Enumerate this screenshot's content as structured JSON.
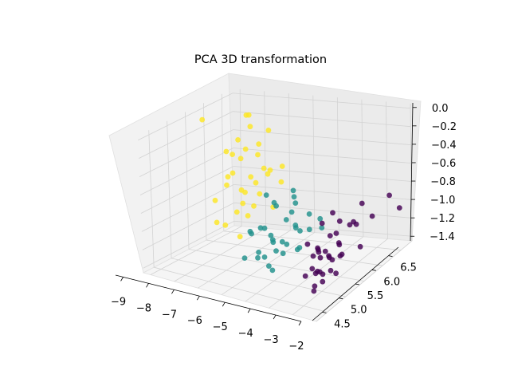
{
  "chart_data": {
    "type": "scatter",
    "projection": "3d",
    "title": "PCA 3D transformation",
    "xlabel": "",
    "ylabel": "",
    "zlabel": "",
    "xlim": [
      -9.3,
      -2.0
    ],
    "ylim": [
      4.2,
      6.8
    ],
    "zlim": [
      -1.45,
      0.05
    ],
    "x_ticks": [
      -9,
      -8,
      -7,
      -6,
      -5,
      -4,
      -3,
      -2
    ],
    "x_tick_labels": [
      "−9",
      "−8",
      "−7",
      "−6",
      "−5",
      "−4",
      "−3",
      "−2"
    ],
    "y_ticks": [
      4.5,
      5.0,
      5.5,
      6.0,
      6.5
    ],
    "y_tick_labels": [
      "4.5",
      "5.0",
      "5.5",
      "6.0",
      "6.5"
    ],
    "z_ticks": [
      -1.4,
      -1.2,
      -1.0,
      -0.8,
      -0.6,
      -0.4,
      -0.2,
      0.0
    ],
    "z_tick_labels": [
      "−1.4",
      "−1.2",
      "−1.0",
      "−0.8",
      "−0.6",
      "−0.4",
      "−0.2",
      "0.0"
    ],
    "grid": true,
    "legend": false,
    "colors": {
      "class_0": "#440154",
      "class_1": "#21918c",
      "class_2": "#fde725"
    },
    "series": [
      {
        "color": "#440154",
        "points": [
          [
            -2.6,
            6.6,
            -0.9
          ],
          [
            -2.5,
            6.8,
            -1.1
          ],
          [
            -2.7,
            6.2,
            -1.0
          ],
          [
            -2.8,
            6.0,
            -0.8
          ],
          [
            -2.6,
            5.8,
            -1.2
          ],
          [
            -2.9,
            5.9,
            -1.0
          ],
          [
            -2.7,
            5.7,
            -0.9
          ],
          [
            -3.0,
            5.5,
            -1.1
          ],
          [
            -2.8,
            5.4,
            -0.8
          ],
          [
            -2.7,
            5.3,
            -1.0
          ],
          [
            -2.9,
            5.2,
            -0.9
          ],
          [
            -3.1,
            5.0,
            -1.0
          ],
          [
            -2.6,
            5.0,
            -1.2
          ],
          [
            -2.8,
            5.1,
            -1.1
          ],
          [
            -2.9,
            5.0,
            -0.7
          ],
          [
            -3.0,
            4.9,
            -1.2
          ],
          [
            -2.7,
            4.8,
            -1.0
          ],
          [
            -2.8,
            4.8,
            -0.9
          ],
          [
            -2.6,
            4.6,
            -1.1
          ],
          [
            -3.2,
            4.7,
            -1.2
          ],
          [
            -2.5,
            4.5,
            -1.2
          ],
          [
            -2.9,
            4.6,
            -0.8
          ],
          [
            -2.7,
            5.2,
            -1.3
          ],
          [
            -3.0,
            5.3,
            -1.2
          ],
          [
            -2.8,
            4.9,
            -1.3
          ],
          [
            -2.6,
            5.1,
            -0.6
          ],
          [
            -2.7,
            5.6,
            -0.9
          ],
          [
            -3.1,
            5.1,
            -1.3
          ],
          [
            -2.5,
            4.9,
            -1.0
          ],
          [
            -2.9,
            4.7,
            -1.1
          ],
          [
            -2.8,
            5.0,
            -1.0
          ],
          [
            -2.9,
            5.5,
            -1.2
          ],
          [
            -2.6,
            4.7,
            -0.9
          ],
          [
            -2.7,
            4.6,
            -1.3
          ],
          [
            -3.0,
            4.8,
            -1.0
          ],
          [
            -2.8,
            5.3,
            -0.9
          ],
          [
            -2.5,
            5.2,
            -1.1
          ],
          [
            -2.9,
            4.9,
            -1.2
          ]
        ]
      },
      {
        "color": "#21918c",
        "points": [
          [
            -6.0,
            5.5,
            -0.7
          ],
          [
            -6.3,
            5.9,
            -0.9
          ],
          [
            -5.8,
            6.1,
            -0.8
          ],
          [
            -5.5,
            5.7,
            -1.0
          ],
          [
            -5.0,
            5.6,
            -0.7
          ],
          [
            -5.3,
            5.2,
            -1.1
          ],
          [
            -5.8,
            5.3,
            -1.0
          ],
          [
            -5.5,
            5.0,
            -0.9
          ],
          [
            -5.0,
            5.0,
            -1.0
          ],
          [
            -4.9,
            5.2,
            -1.2
          ],
          [
            -4.8,
            5.5,
            -1.0
          ],
          [
            -4.6,
            5.4,
            -1.2
          ],
          [
            -4.9,
            4.9,
            -1.3
          ],
          [
            -5.2,
            5.0,
            -1.3
          ],
          [
            -5.5,
            4.9,
            -1.2
          ],
          [
            -5.3,
            4.8,
            -1.1
          ],
          [
            -4.5,
            5.3,
            -0.9
          ],
          [
            -4.7,
            5.8,
            -1.1
          ],
          [
            -5.0,
            6.0,
            -1.0
          ],
          [
            -4.8,
            6.2,
            -1.2
          ],
          [
            -5.1,
            5.7,
            -0.8
          ],
          [
            -5.6,
            5.5,
            -0.8
          ],
          [
            -4.6,
            5.0,
            -1.0
          ],
          [
            -4.9,
            4.7,
            -1.1
          ],
          [
            -5.7,
            5.4,
            -1.1
          ],
          [
            -5.1,
            4.5,
            -0.8
          ],
          [
            -6.1,
            5.1,
            -1.0
          ],
          [
            -5.9,
            4.8,
            -1.2
          ],
          [
            -4.4,
            5.9,
            -1.0
          ],
          [
            -5.2,
            5.5,
            -1.2
          ],
          [
            -4.2,
            5.2,
            -1.1
          ],
          [
            -4.8,
            5.4,
            -0.8
          ],
          [
            -4.4,
            4.7,
            -1.0
          ],
          [
            -5.4,
            6.0,
            -1.2
          ]
        ]
      },
      {
        "color": "#fde725",
        "points": [
          [
            -8.6,
            5.5,
            0.0
          ],
          [
            -8.0,
            6.3,
            -0.1
          ],
          [
            -8.5,
            6.7,
            -0.2
          ],
          [
            -8.3,
            6.6,
            -0.3
          ],
          [
            -8.7,
            6.2,
            -0.5
          ],
          [
            -8.2,
            6.4,
            -0.5
          ],
          [
            -8.9,
            6.5,
            -0.6
          ],
          [
            -8.0,
            6.6,
            -0.6
          ],
          [
            -7.8,
            6.0,
            -0.5
          ],
          [
            -8.3,
            6.1,
            -0.7
          ],
          [
            -7.5,
            6.2,
            -0.8
          ],
          [
            -7.2,
            6.4,
            -0.7
          ],
          [
            -7.0,
            6.6,
            -0.7
          ],
          [
            -8.6,
            6.8,
            -0.9
          ],
          [
            -8.1,
            6.2,
            -0.9
          ],
          [
            -7.8,
            6.5,
            -1.0
          ],
          [
            -7.3,
            6.0,
            -1.0
          ],
          [
            -7.6,
            6.6,
            -0.8
          ],
          [
            -8.1,
            5.5,
            -1.1
          ],
          [
            -7.1,
            6.4,
            -1.1
          ],
          [
            -8.0,
            6.3,
            -1.2
          ],
          [
            -7.6,
            5.8,
            -1.3
          ],
          [
            -8.6,
            6.4,
            -1.2
          ],
          [
            -7.9,
            6.0,
            -0.3
          ],
          [
            -8.8,
            6.3,
            -0.8
          ],
          [
            -7.0,
            6.1,
            -0.6
          ],
          [
            -8.4,
            6.5,
            -1.0
          ],
          [
            -7.3,
            5.7,
            -0.9
          ],
          [
            -8.0,
            6.9,
            -0.4
          ],
          [
            -7.5,
            6.3,
            -0.4
          ],
          [
            -7.8,
            5.6,
            -0.7
          ],
          [
            -8.9,
            6.0,
            -1.0
          ],
          [
            -8.2,
            5.8,
            -1.2
          ],
          [
            -7.2,
            6.7,
            -0.9
          ]
        ]
      }
    ]
  }
}
